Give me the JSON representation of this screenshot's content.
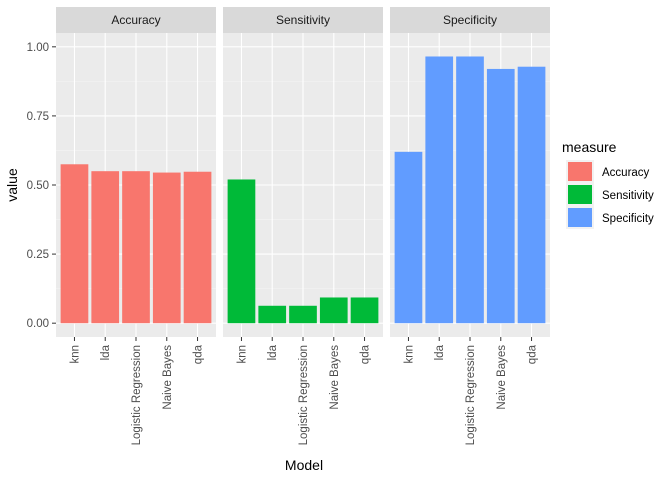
{
  "chart_data": {
    "type": "bar",
    "xlabel": "Model",
    "ylabel": "value",
    "ylim": [
      -0.05,
      1.05
    ],
    "yticks": [
      0.0,
      0.25,
      0.5,
      0.75,
      1.0
    ],
    "ytick_labels": [
      "0.00",
      "0.25",
      "0.50",
      "0.75",
      "1.00"
    ],
    "grid": true,
    "categories": [
      "knn",
      "lda",
      "Logistic Regression",
      "Naive Bayes",
      "qda"
    ],
    "legend": {
      "title": "measure",
      "placement": "right",
      "entries": [
        "Accuracy",
        "Sensitivity",
        "Specificity"
      ]
    },
    "facets": [
      {
        "name": "Accuracy",
        "color": "#F8766D",
        "values": [
          0.575,
          0.55,
          0.55,
          0.545,
          0.548
        ]
      },
      {
        "name": "Sensitivity",
        "color": "#00BA38",
        "values": [
          0.52,
          0.063,
          0.063,
          0.093,
          0.093
        ]
      },
      {
        "name": "Specificity",
        "color": "#619CFF",
        "values": [
          0.62,
          0.965,
          0.965,
          0.92,
          0.928
        ]
      }
    ]
  }
}
